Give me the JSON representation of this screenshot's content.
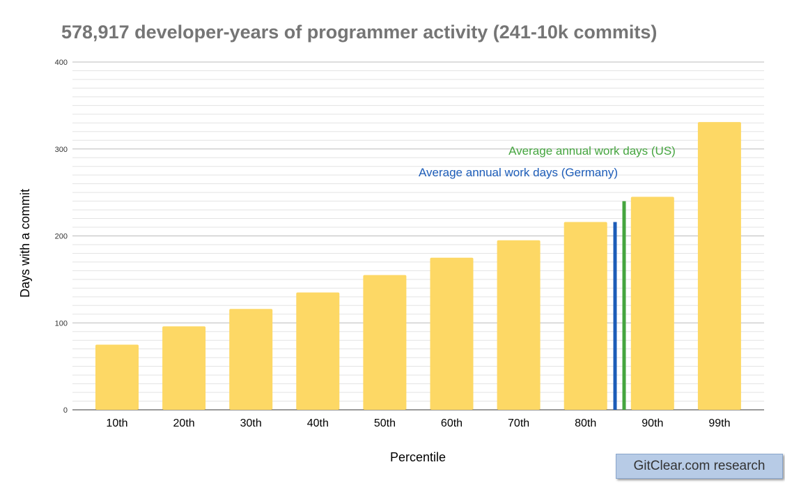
{
  "chart_data": {
    "type": "bar",
    "title": "578,917 developer-years of programmer activity (241-10k commits)",
    "xlabel": "Percentile",
    "ylabel": "Days with a commit",
    "ylim": [
      0,
      400
    ],
    "yticks": [
      0,
      100,
      200,
      300,
      400
    ],
    "minor_grid_step": 10,
    "grid": true,
    "categories": [
      "10th",
      "20th",
      "30th",
      "40th",
      "50th",
      "60th",
      "70th",
      "80th",
      "90th",
      "99th"
    ],
    "values": [
      75,
      96,
      116,
      135,
      155,
      175,
      195,
      216,
      245,
      331
    ],
    "bar_color": "#fdd865",
    "reference_lines": [
      {
        "label": "Average annual work days (Germany)",
        "value": 216,
        "color": "#1c5cb8"
      },
      {
        "label": "Average annual work days (US)",
        "value": 240,
        "color": "#45a53f"
      }
    ]
  },
  "watermark": "GitClear.com research"
}
